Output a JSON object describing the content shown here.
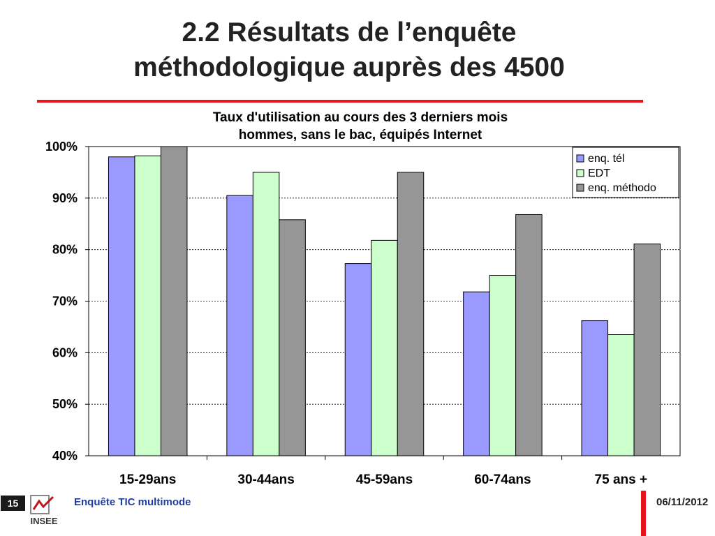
{
  "slide": {
    "title_line1": "2.2 Résultats de l’enquête",
    "title_line2": "méthodologique auprès des 4500"
  },
  "footer": {
    "page_number": "15",
    "logo_text": "INSEE",
    "title": "Enquête TIC multimode",
    "date": "06/11/2012"
  },
  "colors": {
    "accent_red": "#e8141b",
    "footer_blue": "#1f3fa0"
  },
  "chart_data": {
    "type": "bar",
    "title_line1": "Taux d'utilisation au cours des 3 derniers mois",
    "title_line2": "hommes, sans le bac, équipés Internet",
    "categories": [
      "15-29ans",
      "30-44ans",
      "45-59ans",
      "60-74ans",
      "75 ans +"
    ],
    "series": [
      {
        "name": "enq. tél",
        "color": "#9999ff",
        "values": [
          98,
          90.5,
          77.3,
          71.8,
          66.2
        ]
      },
      {
        "name": "EDT",
        "color": "#ccffcc",
        "values": [
          98.2,
          95,
          81.8,
          75,
          63.5
        ]
      },
      {
        "name": "enq. méthodo",
        "color": "#969696",
        "values": [
          100,
          85.8,
          95,
          86.8,
          81.1
        ]
      }
    ],
    "ylim": [
      40,
      100
    ],
    "yticks": [
      100,
      90,
      80,
      70,
      60,
      50,
      40
    ],
    "ytick_labels": [
      "100%",
      "90%",
      "80%",
      "70%",
      "60%",
      "50%",
      "40%"
    ],
    "grid": true,
    "legend_position": "top-right"
  }
}
